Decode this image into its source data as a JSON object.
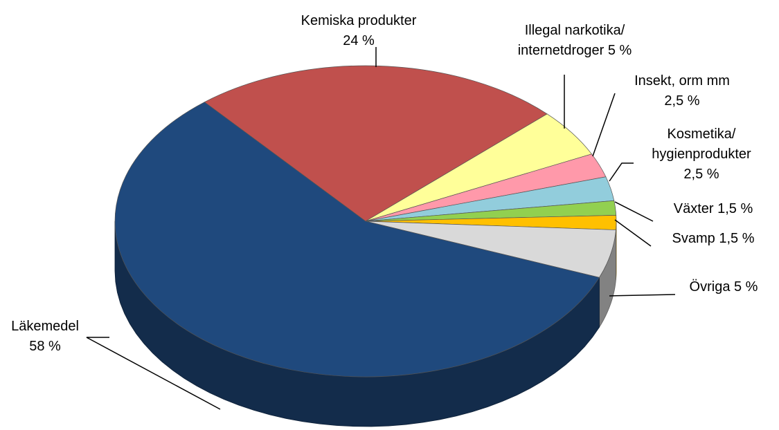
{
  "chart_data": {
    "type": "pie",
    "categories": [
      "Kemiska produkter",
      "Illegal narkotika/ internetdroger",
      "Insekt, orm mm",
      "Kosmetika/ hygienprodukter",
      "Växter",
      "Svamp",
      "Övriga",
      "Läkemedel"
    ],
    "values": [
      24,
      5,
      2.5,
      2.5,
      1.5,
      1.5,
      5,
      58
    ],
    "value_labels": [
      "24 %",
      "5 %",
      "2,5 %",
      "2,5 %",
      "1,5 %",
      "1,5 %",
      "5 %",
      "58 %"
    ],
    "colors": [
      "#c0504d",
      "#ffff99",
      "#ff99aa",
      "#92cddc",
      "#92d050",
      "#ffc000",
      "#d9d9d9",
      "#1f497d"
    ]
  }
}
